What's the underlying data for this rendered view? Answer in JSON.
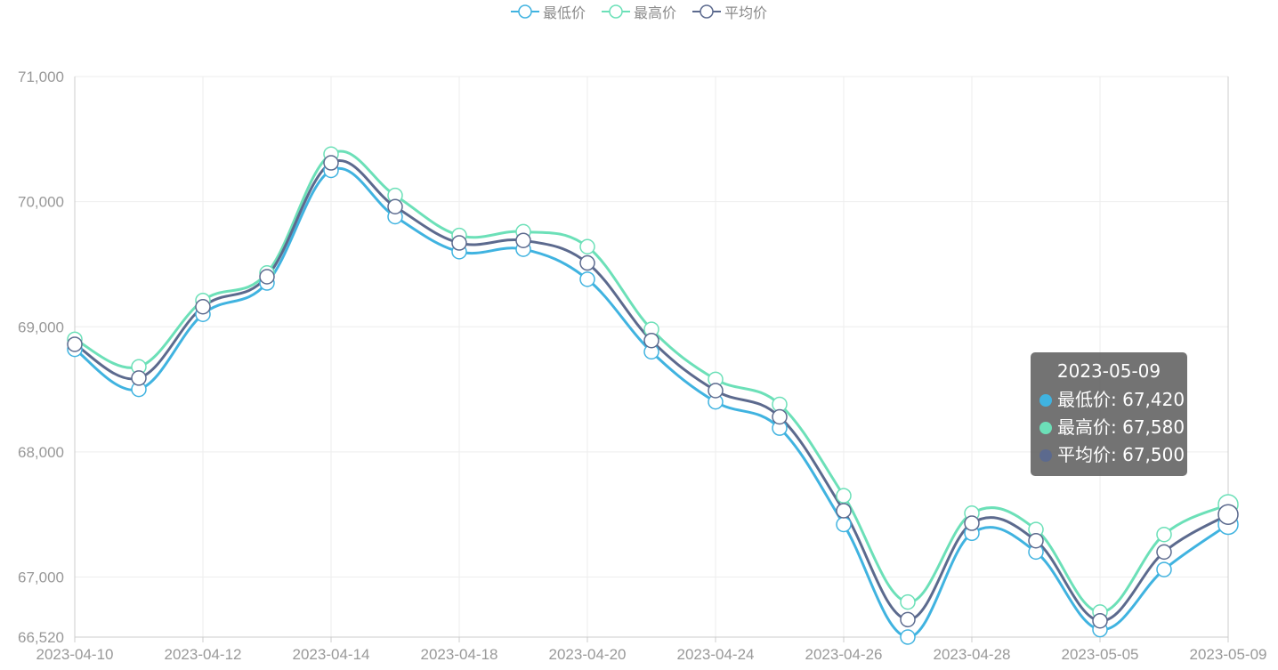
{
  "chart_data": {
    "type": "line",
    "smooth": true,
    "title": "",
    "xlabel": "",
    "ylabel": "",
    "x": [
      "2023-04-10",
      "2023-04-11",
      "2023-04-12",
      "2023-04-13",
      "2023-04-14",
      "2023-04-17",
      "2023-04-18",
      "2023-04-19",
      "2023-04-20",
      "2023-04-21",
      "2023-04-24",
      "2023-04-25",
      "2023-04-26",
      "2023-04-27",
      "2023-04-28",
      "2023-05-04",
      "2023-05-05",
      "2023-05-08",
      "2023-05-09"
    ],
    "x_tick_labels": [
      "2023-04-10",
      "2023-04-12",
      "2023-04-14",
      "2023-04-18",
      "2023-04-20",
      "2023-04-24",
      "2023-04-26",
      "2023-04-28",
      "2023-05-05",
      "2023-05-09"
    ],
    "ylim": [
      66520,
      71000
    ],
    "y_tick_labels": [
      "71,000",
      "70,000",
      "69,000",
      "68,000",
      "67,000",
      "66,520"
    ],
    "y_ticks": [
      71000,
      70000,
      69000,
      68000,
      67000,
      66520
    ],
    "grid": true,
    "legend_position": "top-center",
    "series": [
      {
        "name": "最低价",
        "color": "#40b3e0",
        "values": [
          68820,
          68500,
          69100,
          69350,
          70250,
          69880,
          69600,
          69620,
          69380,
          68800,
          68400,
          68190,
          67420,
          66520,
          67350,
          67200,
          66580,
          67060,
          67420
        ]
      },
      {
        "name": "最高价",
        "color": "#6ce0b8",
        "values": [
          68900,
          68680,
          69210,
          69430,
          70380,
          70050,
          69730,
          69760,
          69640,
          68980,
          68580,
          68380,
          67650,
          66800,
          67510,
          67380,
          66720,
          67340,
          67580
        ]
      },
      {
        "name": "平均价",
        "color": "#5c6a8e",
        "values": [
          68860,
          68590,
          69160,
          69400,
          70310,
          69960,
          69670,
          69690,
          69510,
          68890,
          68490,
          68280,
          67530,
          66660,
          67430,
          67290,
          66650,
          67200,
          67500
        ]
      }
    ],
    "tooltip": {
      "title": "2023-05-09",
      "rows": [
        {
          "label": "最低价: 67,420",
          "color": "#40b3e0"
        },
        {
          "label": "最高价: 67,580",
          "color": "#6ce0b8"
        },
        {
          "label": "平均价: 67,500",
          "color": "#5c6a8e"
        }
      ]
    }
  }
}
